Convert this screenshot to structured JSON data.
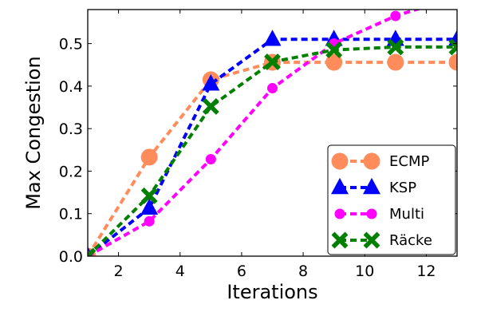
{
  "chart_data": {
    "type": "line",
    "title": "",
    "xlabel": "Iterations",
    "ylabel": "Max Congestion",
    "xlim": [
      1,
      13
    ],
    "ylim": [
      0.0,
      0.58
    ],
    "x_ticks": [
      2,
      4,
      6,
      8,
      10,
      12
    ],
    "y_ticks": [
      0.0,
      0.1,
      0.2,
      0.3,
      0.4,
      0.5
    ],
    "x_tick_labels": [
      "2",
      "4",
      "6",
      "8",
      "10",
      "12"
    ],
    "y_tick_labels": [
      "0.0",
      "0.1",
      "0.2",
      "0.3",
      "0.4",
      "0.5"
    ],
    "grid": false,
    "legend_position": "lower-right",
    "series": [
      {
        "name": "ECMP",
        "color": "#ff8c5a",
        "marker": "circle-large",
        "x": [
          1,
          3,
          5,
          7,
          9,
          11,
          13
        ],
        "y": [
          0.0,
          0.233,
          0.415,
          0.456,
          0.456,
          0.456,
          0.456
        ]
      },
      {
        "name": "KSP",
        "color": "#0000ff",
        "marker": "triangle",
        "x": [
          1,
          3,
          5,
          7,
          9,
          11,
          13
        ],
        "y": [
          0.0,
          0.113,
          0.405,
          0.51,
          0.51,
          0.51,
          0.51
        ]
      },
      {
        "name": "Multi",
        "color": "#ff00ff",
        "marker": "circle-small",
        "x": [
          1,
          3,
          5,
          7,
          9,
          11,
          13
        ],
        "y": [
          0.0,
          0.082,
          0.228,
          0.395,
          0.5,
          0.565,
          0.61
        ]
      },
      {
        "name": "Räcke",
        "color": "#007f00",
        "marker": "x",
        "x": [
          1,
          3,
          5,
          7,
          9,
          11,
          13
        ],
        "y": [
          0.0,
          0.142,
          0.352,
          0.457,
          0.485,
          0.492,
          0.492
        ]
      }
    ]
  }
}
